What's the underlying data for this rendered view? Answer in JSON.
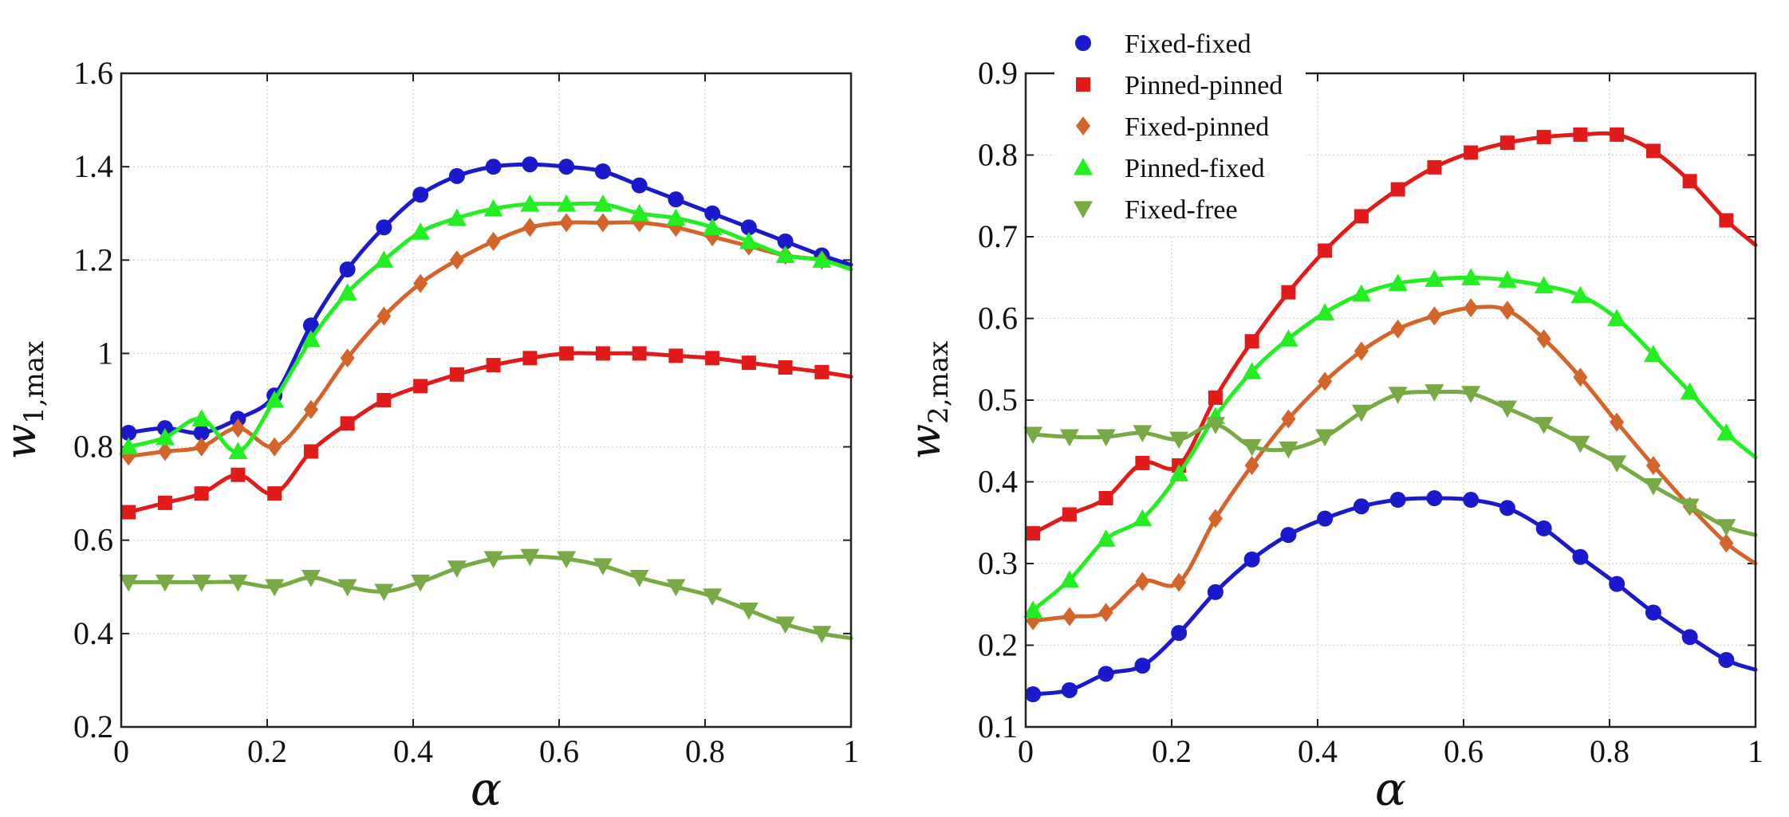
{
  "chart_data": [
    {
      "type": "line",
      "xlabel": "α",
      "ylabel_main": "w",
      "ylabel_sub": "1,max",
      "xlim": [
        0,
        1
      ],
      "ylim": [
        0.2,
        1.6
      ],
      "xticks": [
        0,
        0.2,
        0.4,
        0.6,
        0.8,
        1
      ],
      "xtick_labels": [
        "0",
        "0.2",
        "0.4",
        "0.6",
        "0.8",
        "1"
      ],
      "yticks": [
        0.2,
        0.4,
        0.6,
        0.8,
        1.0,
        1.2,
        1.4,
        1.6
      ],
      "ytick_labels": [
        "0.2",
        "0.4",
        "0.6",
        "0.8",
        "1",
        "1.2",
        "1.4",
        "1.6"
      ],
      "grid": true,
      "x": [
        0.01,
        0.06,
        0.11,
        0.16,
        0.21,
        0.26,
        0.31,
        0.36,
        0.41,
        0.46,
        0.51,
        0.56,
        0.61,
        0.66,
        0.71,
        0.76,
        0.81,
        0.86,
        0.91,
        0.96
      ],
      "series": [
        {
          "name": "Fixed-fixed",
          "values": [
            0.83,
            0.84,
            0.83,
            0.86,
            0.91,
            1.06,
            1.18,
            1.27,
            1.34,
            1.38,
            1.4,
            1.405,
            1.4,
            1.39,
            1.36,
            1.33,
            1.3,
            1.27,
            1.24,
            1.21
          ],
          "end": 1.19
        },
        {
          "name": "Pinned-pinned",
          "values": [
            0.66,
            0.68,
            0.7,
            0.74,
            0.7,
            0.79,
            0.85,
            0.9,
            0.93,
            0.955,
            0.975,
            0.99,
            1.0,
            1.0,
            1.0,
            0.995,
            0.99,
            0.98,
            0.97,
            0.96
          ],
          "end": 0.95
        },
        {
          "name": "Fixed-pinned",
          "values": [
            0.78,
            0.79,
            0.8,
            0.84,
            0.8,
            0.88,
            0.99,
            1.08,
            1.15,
            1.2,
            1.24,
            1.27,
            1.28,
            1.28,
            1.28,
            1.27,
            1.25,
            1.23,
            1.21,
            1.2
          ],
          "end": 1.18
        },
        {
          "name": "Pinned-fixed",
          "values": [
            0.8,
            0.82,
            0.86,
            0.79,
            0.9,
            1.03,
            1.13,
            1.2,
            1.26,
            1.29,
            1.31,
            1.32,
            1.32,
            1.32,
            1.3,
            1.29,
            1.27,
            1.24,
            1.21,
            1.2
          ],
          "end": 1.18
        },
        {
          "name": "Fixed-free",
          "values": [
            0.51,
            0.51,
            0.51,
            0.51,
            0.5,
            0.52,
            0.5,
            0.49,
            0.51,
            0.54,
            0.56,
            0.565,
            0.56,
            0.545,
            0.52,
            0.5,
            0.48,
            0.45,
            0.42,
            0.4
          ],
          "end": 0.39
        }
      ]
    },
    {
      "type": "line",
      "xlabel": "α",
      "ylabel_main": "w",
      "ylabel_sub": "2,max",
      "xlim": [
        0,
        1
      ],
      "ylim": [
        0.1,
        0.9
      ],
      "xticks": [
        0,
        0.2,
        0.4,
        0.6,
        0.8,
        1
      ],
      "xtick_labels": [
        "0",
        "0.2",
        "0.4",
        "0.6",
        "0.8",
        "1"
      ],
      "yticks": [
        0.1,
        0.2,
        0.3,
        0.4,
        0.5,
        0.6,
        0.7,
        0.8,
        0.9
      ],
      "ytick_labels": [
        "0.1",
        "0.2",
        "0.3",
        "0.4",
        "0.5",
        "0.6",
        "0.7",
        "0.8",
        "0.9"
      ],
      "grid": true,
      "legend_position": "top-left",
      "x": [
        0.01,
        0.06,
        0.11,
        0.16,
        0.21,
        0.26,
        0.31,
        0.36,
        0.41,
        0.46,
        0.51,
        0.56,
        0.61,
        0.66,
        0.71,
        0.76,
        0.81,
        0.86,
        0.91,
        0.96
      ],
      "series": [
        {
          "name": "Fixed-fixed",
          "values": [
            0.14,
            0.145,
            0.165,
            0.175,
            0.215,
            0.265,
            0.305,
            0.335,
            0.355,
            0.37,
            0.378,
            0.38,
            0.378,
            0.368,
            0.343,
            0.308,
            0.275,
            0.24,
            0.21,
            0.182
          ],
          "end": 0.17
        },
        {
          "name": "Pinned-pinned",
          "values": [
            0.337,
            0.36,
            0.38,
            0.423,
            0.42,
            0.503,
            0.572,
            0.632,
            0.683,
            0.725,
            0.758,
            0.785,
            0.803,
            0.815,
            0.822,
            0.825,
            0.825,
            0.805,
            0.768,
            0.72
          ],
          "end": 0.69
        },
        {
          "name": "Fixed-pinned",
          "values": [
            0.23,
            0.235,
            0.24,
            0.278,
            0.277,
            0.355,
            0.42,
            0.477,
            0.523,
            0.56,
            0.587,
            0.603,
            0.613,
            0.61,
            0.575,
            0.528,
            0.473,
            0.42,
            0.37,
            0.325
          ],
          "end": 0.3
        },
        {
          "name": "Pinned-fixed",
          "values": [
            0.243,
            0.28,
            0.33,
            0.355,
            0.41,
            0.48,
            0.535,
            0.575,
            0.607,
            0.63,
            0.643,
            0.648,
            0.65,
            0.647,
            0.64,
            0.628,
            0.6,
            0.556,
            0.51,
            0.46
          ],
          "end": 0.43
        },
        {
          "name": "Fixed-free",
          "values": [
            0.458,
            0.455,
            0.455,
            0.46,
            0.452,
            0.47,
            0.443,
            0.44,
            0.455,
            0.485,
            0.507,
            0.51,
            0.508,
            0.49,
            0.47,
            0.447,
            0.423,
            0.395,
            0.37,
            0.345
          ],
          "end": 0.335
        }
      ]
    }
  ],
  "legend": {
    "entries": [
      "Fixed-fixed",
      "Pinned-pinned",
      "Fixed-pinned",
      "Pinned-fixed",
      "Fixed-free"
    ]
  },
  "series_style": [
    {
      "name": "Fixed-fixed",
      "color": "#1a1acc",
      "marker": "circle"
    },
    {
      "name": "Pinned-pinned",
      "color": "#e11a1a",
      "marker": "square"
    },
    {
      "name": "Fixed-pinned",
      "color": "#d4652a",
      "marker": "diamond"
    },
    {
      "name": "Pinned-fixed",
      "color": "#22ee22",
      "marker": "triangle-up"
    },
    {
      "name": "Fixed-free",
      "color": "#77aa44",
      "marker": "triangle-down"
    }
  ]
}
